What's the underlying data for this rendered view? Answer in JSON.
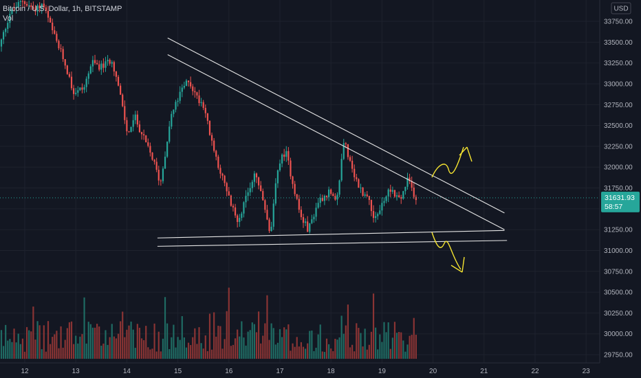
{
  "header": {
    "symbol_line": "Bitcoin / U.S. Dollar, 1h, BITSTAMP",
    "indicator": "Vol"
  },
  "currency_button": "USD",
  "last_price": {
    "value_label": "31631.93",
    "countdown": "58:57",
    "value": 31631.93
  },
  "colors": {
    "background": "#131722",
    "up": "#26a69a",
    "down": "#ef5350",
    "up_volume": "#1f6b63",
    "down_volume": "#8a3434",
    "trendline": "#e6e6e6",
    "annotation": "#f5e431",
    "price_tag": "#26a69a"
  },
  "chart_data": {
    "type": "candlestick",
    "ylim": [
      29600,
      34000
    ],
    "y_ticks": [
      {
        "value": 29750,
        "label": "29750.00"
      },
      {
        "value": 30000,
        "label": "30000.00"
      },
      {
        "value": 30250,
        "label": "30250.00"
      },
      {
        "value": 30500,
        "label": "30500.00"
      },
      {
        "value": 30750,
        "label": "30750.00"
      },
      {
        "value": 31000,
        "label": "31000.00"
      },
      {
        "value": 31250,
        "label": "31250.00"
      },
      {
        "value": 31500,
        "label": "31500.00"
      },
      {
        "value": 31750,
        "label": "31750.00"
      },
      {
        "value": 32000,
        "label": "32000.00"
      },
      {
        "value": 32250,
        "label": "32250.00"
      },
      {
        "value": 32500,
        "label": "32500.00"
      },
      {
        "value": 32750,
        "label": "32750.00"
      },
      {
        "value": 33000,
        "label": "33000.00"
      },
      {
        "value": 33250,
        "label": "33250.00"
      },
      {
        "value": 33500,
        "label": "33500.00"
      },
      {
        "value": 33750,
        "label": "33750.00"
      }
    ],
    "x_ticks": [
      {
        "day": 12,
        "label": "12"
      },
      {
        "day": 13,
        "label": "13"
      },
      {
        "day": 14,
        "label": "14"
      },
      {
        "day": 15,
        "label": "15"
      },
      {
        "day": 16,
        "label": "16"
      },
      {
        "day": 17,
        "label": "17"
      },
      {
        "day": 18,
        "label": "18"
      },
      {
        "day": 19,
        "label": "19"
      },
      {
        "day": 20,
        "label": "20"
      },
      {
        "day": 21,
        "label": "21"
      },
      {
        "day": 22,
        "label": "22"
      },
      {
        "day": 23,
        "label": "23"
      }
    ],
    "price_waypoints": [
      [
        11.5,
        33350
      ],
      [
        11.75,
        33850
      ],
      [
        12.0,
        34000
      ],
      [
        12.2,
        33900
      ],
      [
        12.4,
        33950
      ],
      [
        12.6,
        33600
      ],
      [
        12.8,
        33300
      ],
      [
        13.0,
        32900
      ],
      [
        13.2,
        32950
      ],
      [
        13.35,
        33250
      ],
      [
        13.55,
        33200
      ],
      [
        13.75,
        33300
      ],
      [
        13.9,
        32900
      ],
      [
        14.05,
        32400
      ],
      [
        14.2,
        32600
      ],
      [
        14.4,
        32300
      ],
      [
        14.55,
        32100
      ],
      [
        14.7,
        31800
      ],
      [
        14.9,
        32600
      ],
      [
        15.1,
        32900
      ],
      [
        15.25,
        33050
      ],
      [
        15.4,
        32850
      ],
      [
        15.55,
        32750
      ],
      [
        15.7,
        32300
      ],
      [
        15.85,
        32000
      ],
      [
        16.0,
        31700
      ],
      [
        16.2,
        31350
      ],
      [
        16.4,
        31650
      ],
      [
        16.55,
        31950
      ],
      [
        16.75,
        31500
      ],
      [
        16.85,
        31150
      ],
      [
        17.0,
        32000
      ],
      [
        17.15,
        32200
      ],
      [
        17.3,
        31800
      ],
      [
        17.45,
        31400
      ],
      [
        17.6,
        31250
      ],
      [
        17.8,
        31600
      ],
      [
        18.0,
        31700
      ],
      [
        18.15,
        31550
      ],
      [
        18.3,
        32350
      ],
      [
        18.45,
        31950
      ],
      [
        18.6,
        31750
      ],
      [
        18.8,
        31600
      ],
      [
        18.9,
        31350
      ],
      [
        19.0,
        31500
      ],
      [
        19.2,
        31750
      ],
      [
        19.4,
        31600
      ],
      [
        19.55,
        31850
      ],
      [
        19.7,
        31632
      ]
    ],
    "trendlines": [
      {
        "name": "upper-resistance-1",
        "from": [
          14.8,
          33550
        ],
        "to": [
          21.4,
          31450
        ]
      },
      {
        "name": "upper-resistance-2",
        "from": [
          14.8,
          33350
        ],
        "to": [
          21.4,
          31250
        ]
      },
      {
        "name": "lower-support-1",
        "from": [
          14.6,
          31150
        ],
        "to": [
          21.4,
          31240
        ]
      },
      {
        "name": "lower-support-2",
        "from": [
          14.6,
          31050
        ],
        "to": [
          21.45,
          31120
        ]
      }
    ]
  }
}
